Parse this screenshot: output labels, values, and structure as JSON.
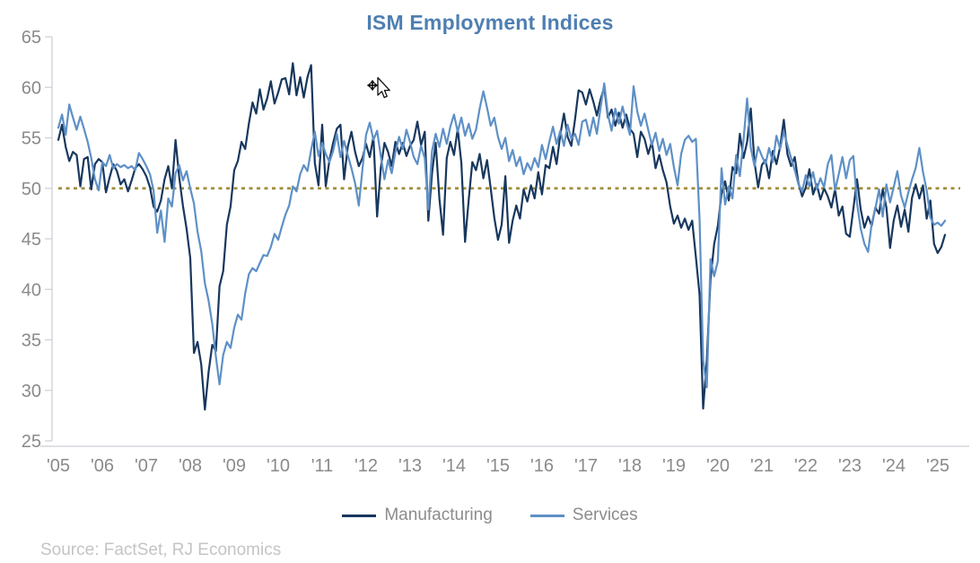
{
  "chart": {
    "source_note": "Source: FactSet, RJ Economics"
  },
  "chart_data": {
    "type": "line",
    "title": "ISM Employment Indices",
    "title_color": "#4e7fb1",
    "x_unit": "month",
    "x_start": "2005-01",
    "x_end": "2025-03",
    "x_tick_labels": [
      "'05",
      "'06",
      "'07",
      "'08",
      "'09",
      "'10",
      "'11",
      "'12",
      "'13",
      "'14",
      "'15",
      "'16",
      "'17",
      "'18",
      "'19",
      "'20",
      "'21",
      "'22",
      "'23",
      "'24",
      "'25"
    ],
    "y_ticks": [
      65,
      60,
      55,
      50,
      45,
      40,
      35,
      30,
      25
    ],
    "ylim": [
      25,
      65
    ],
    "grid": false,
    "legend_position": "bottom",
    "reference_line": {
      "value": 50,
      "style": "dotted",
      "color": "#a08e3b"
    },
    "axis_color": "#c9ced4",
    "tick_label_color": "#8a8a8a",
    "series": [
      {
        "name": "Manufacturing",
        "color": "#17375e",
        "values": [
          54.8,
          56.3,
          54.1,
          52.7,
          53.6,
          53.3,
          50.2,
          52.9,
          53.1,
          49.9,
          52.4,
          52.9,
          52.6,
          49.6,
          51.1,
          52.4,
          51.7,
          50.4,
          50.9,
          49.7,
          50.8,
          52.0,
          52.4,
          51.9,
          51.2,
          50.1,
          48.2,
          47.7,
          48.8,
          50.9,
          52.2,
          50.0,
          54.8,
          51.1,
          48.3,
          46.0,
          43.1,
          33.7,
          34.8,
          32.6,
          28.1,
          31.8,
          34.5,
          33.9,
          40.3,
          41.8,
          46.4,
          48.2,
          51.8,
          52.7,
          54.6,
          53.9,
          56.4,
          58.5,
          57.4,
          59.8,
          57.8,
          58.9,
          60.6,
          58.4,
          59.5,
          60.8,
          60.9,
          59.3,
          62.4,
          59.2,
          61.0,
          59.0,
          61.0,
          62.2,
          52.5,
          50.3,
          56.3,
          50.2,
          52.8,
          54.5,
          55.9,
          56.3,
          50.9,
          54.1,
          55.6,
          53.6,
          52.2,
          53.0,
          54.4,
          53.1,
          55.1,
          47.2,
          52.0,
          54.5,
          53.6,
          52.2,
          54.6,
          53.4,
          54.5,
          53.2,
          54.2,
          54.8,
          56.6,
          54.3,
          55.6,
          46.8,
          51.5,
          54.5,
          49.0,
          45.4,
          53.0,
          54.6,
          53.3,
          55.9,
          52.5,
          44.7,
          48.9,
          52.6,
          51.8,
          53.4,
          51.0,
          52.8,
          50.0,
          47.1,
          44.9,
          46.4,
          51.2,
          44.6,
          46.8,
          48.3,
          47.0,
          49.9,
          48.7,
          50.3,
          49.0,
          51.6,
          49.4,
          52.3,
          52.0,
          54.1,
          52.4,
          55.3,
          57.4,
          55.1,
          54.2,
          56.8,
          59.7,
          59.5,
          58.3,
          59.8,
          58.6,
          57.2,
          58.8,
          60.0,
          57.0,
          57.8,
          56.2,
          57.5,
          56.0,
          57.3,
          55.9,
          55.4,
          53.1,
          55.6,
          54.9,
          53.4,
          54.6,
          52.0,
          53.3,
          51.8,
          50.6,
          48.2,
          46.5,
          47.3,
          46.1,
          47.0,
          45.9,
          46.8,
          43.2,
          39.5,
          28.2,
          33.0,
          41.0,
          44.5,
          46.3,
          49.5,
          50.7,
          48.8,
          52.1,
          51.5,
          55.4,
          53.0,
          54.6,
          57.9,
          52.6,
          50.1,
          52.3,
          52.8,
          51.0,
          53.7,
          52.4,
          54.1,
          56.8,
          53.4,
          52.2,
          53.1,
          50.5,
          49.2,
          50.1,
          51.9,
          49.4,
          50.4,
          48.9,
          50.0,
          49.2,
          48.1,
          49.9,
          47.3,
          48.2,
          45.5,
          45.2,
          48.0,
          50.9,
          47.9,
          46.1,
          47.2,
          46.3,
          48.1,
          47.5,
          49.9,
          48.1,
          44.1,
          46.8,
          48.3,
          46.2,
          47.9,
          45.7,
          49.1,
          50.4,
          49.0,
          50.3,
          47.0,
          48.8,
          44.5,
          43.6,
          44.2,
          45.4
        ]
      },
      {
        "name": "Services",
        "color": "#5e90c6",
        "values": [
          56.0,
          57.3,
          55.3,
          58.3,
          57.0,
          55.8,
          57.1,
          55.9,
          54.6,
          53.0,
          50.9,
          49.8,
          52.6,
          52.2,
          53.3,
          52.0,
          52.4,
          52.1,
          52.3,
          52.0,
          52.2,
          51.8,
          53.5,
          52.9,
          52.2,
          51.4,
          49.8,
          45.6,
          47.8,
          44.7,
          49.0,
          48.2,
          51.5,
          52.3,
          50.8,
          51.7,
          50.0,
          48.5,
          45.7,
          43.8,
          40.6,
          38.9,
          36.6,
          33.3,
          30.6,
          33.5,
          34.8,
          34.2,
          36.2,
          37.5,
          37.0,
          39.6,
          41.5,
          42.1,
          41.8,
          42.6,
          43.4,
          43.3,
          44.2,
          45.5,
          44.9,
          46.2,
          47.4,
          48.3,
          50.2,
          49.7,
          51.4,
          52.3,
          51.7,
          53.8,
          55.6,
          53.2,
          54.5,
          53.4,
          52.6,
          53.7,
          55.4,
          53.1,
          54.7,
          53.3,
          52.0,
          50.5,
          48.3,
          51.9,
          55.3,
          56.5,
          54.8,
          55.7,
          53.2,
          50.9,
          52.8,
          51.5,
          53.6,
          55.1,
          53.9,
          55.8,
          54.6,
          53.1,
          52.4,
          54.2,
          53.0,
          47.9,
          53.7,
          55.4,
          54.1,
          55.9,
          54.4,
          56.1,
          57.3,
          55.6,
          57.0,
          55.2,
          56.4,
          54.9,
          55.8,
          57.9,
          59.6,
          58.0,
          56.2,
          57.0,
          55.1,
          53.9,
          55.0,
          52.7,
          53.8,
          52.2,
          53.1,
          51.4,
          52.5,
          51.8,
          53.0,
          52.1,
          54.3,
          52.9,
          54.6,
          56.1,
          54.4,
          55.7,
          54.2,
          56.3,
          54.9,
          55.4,
          54.3,
          56.6,
          56.8,
          55.2,
          57.0,
          55.4,
          58.0,
          60.4,
          57.3,
          55.7,
          57.9,
          56.4,
          58.1,
          56.6,
          55.3,
          60.1,
          57.6,
          56.2,
          57.4,
          55.8,
          54.3,
          55.5,
          53.7,
          54.9,
          53.3,
          54.4,
          52.1,
          50.3,
          53.4,
          54.8,
          55.2,
          54.6,
          54.9,
          47.0,
          33.0,
          30.3,
          43.0,
          41.3,
          42.8,
          52.0,
          48.4,
          50.2,
          49.0,
          53.3,
          51.2,
          54.8,
          58.9,
          54.0,
          52.2,
          54.1,
          53.2,
          52.4,
          54.0,
          52.6,
          55.2,
          53.9,
          55.6,
          54.3,
          53.0,
          51.8,
          50.4,
          49.7,
          51.3,
          50.2,
          51.6,
          49.9,
          51.0,
          50.1,
          52.4,
          53.3,
          49.8,
          51.4,
          53.1,
          51.0,
          52.8,
          53.2,
          48.5,
          46.0,
          44.5,
          43.7,
          46.5,
          48.0,
          49.9,
          47.2,
          50.4,
          48.6,
          50.1,
          51.7,
          49.3,
          48.1,
          49.6,
          50.9,
          52.0,
          54.0,
          51.6,
          49.8,
          47.1,
          46.4,
          46.6,
          46.3,
          46.8
        ]
      }
    ]
  }
}
